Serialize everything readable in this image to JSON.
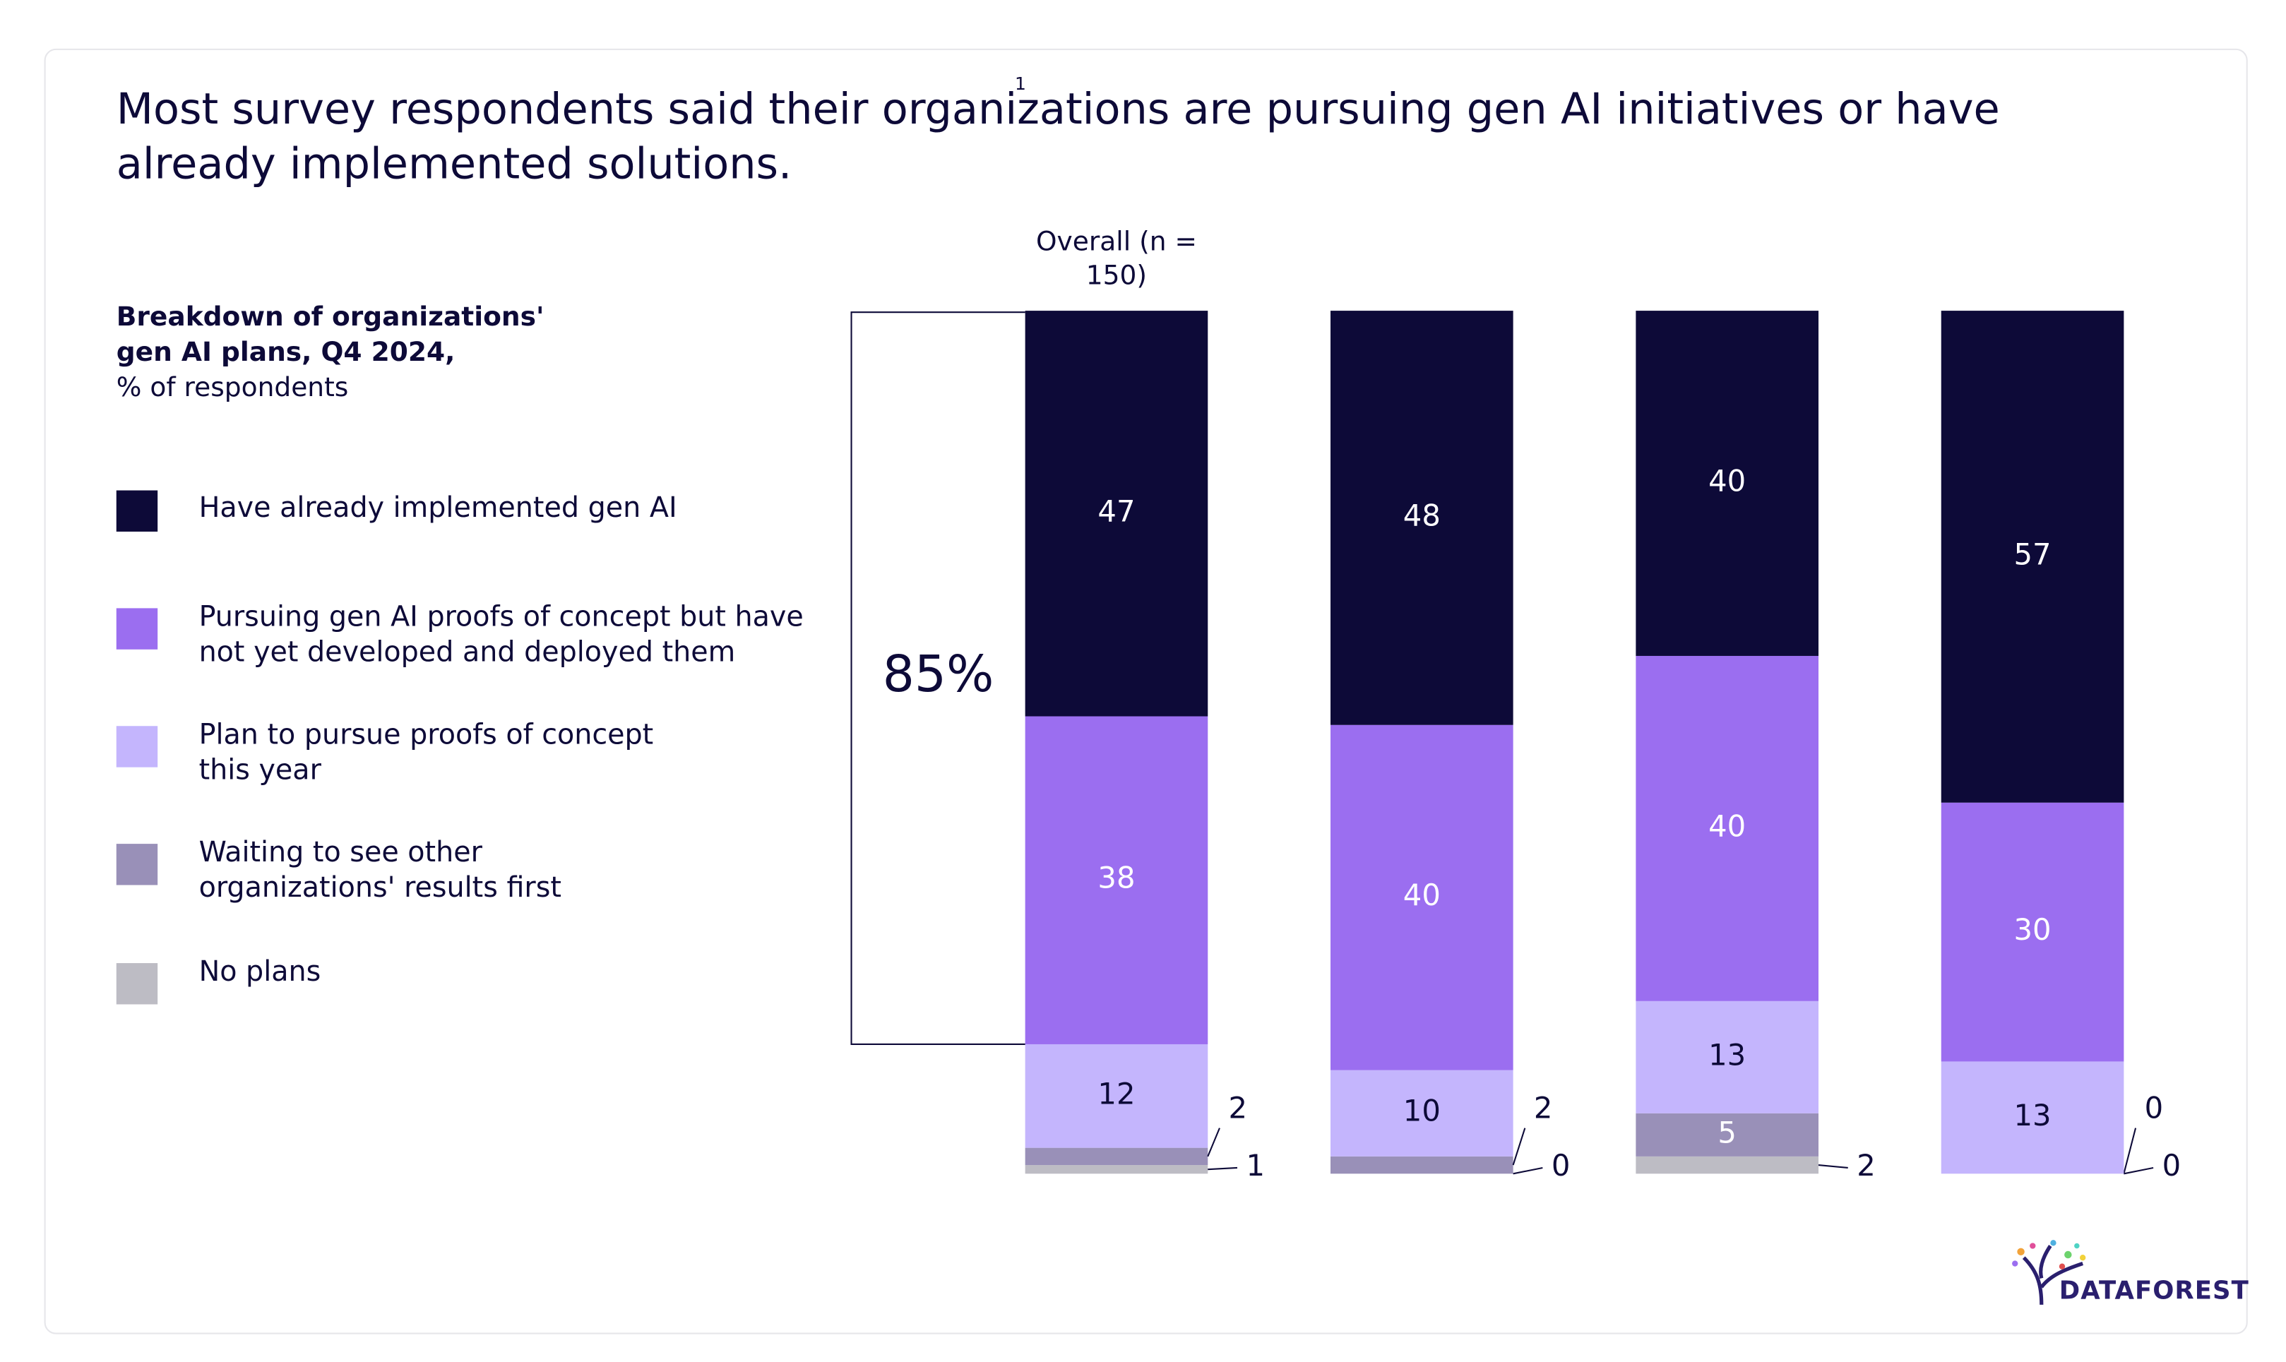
{
  "chart_data": {
    "type": "stacked-bar",
    "title": "Most survey respondents said their organizations are pursuing gen AI initiatives or have already implemented solutions.",
    "footnote_marker": "1",
    "subtitle": "Breakdown of organizations' gen AI plans, Q4 2024,",
    "unit": "% of respondents",
    "categories": [
      "Overall (n = 150)",
      null,
      null,
      null
    ],
    "series": [
      {
        "name": "Have already implemented gen AI",
        "color": "#0d0a38",
        "values": [
          47,
          48,
          40,
          57
        ]
      },
      {
        "name": "Pursuing gen AI proofs of concept but have not yet developed and deployed them",
        "color": "#9b6ef0",
        "values": [
          38,
          40,
          40,
          30
        ]
      },
      {
        "name": "Plan to pursue proofs of concept this year",
        "color": "#c4b5fd",
        "values": [
          12,
          10,
          13,
          13
        ]
      },
      {
        "name": "Waiting to see other organizations' results first",
        "color": "#9990b8",
        "values": [
          2,
          2,
          5,
          0
        ]
      },
      {
        "name": "No plans",
        "color": "#bdbcc4",
        "values": [
          1,
          0,
          2,
          0
        ]
      }
    ],
    "annotation": "85%",
    "logo": "DATAFOREST"
  }
}
